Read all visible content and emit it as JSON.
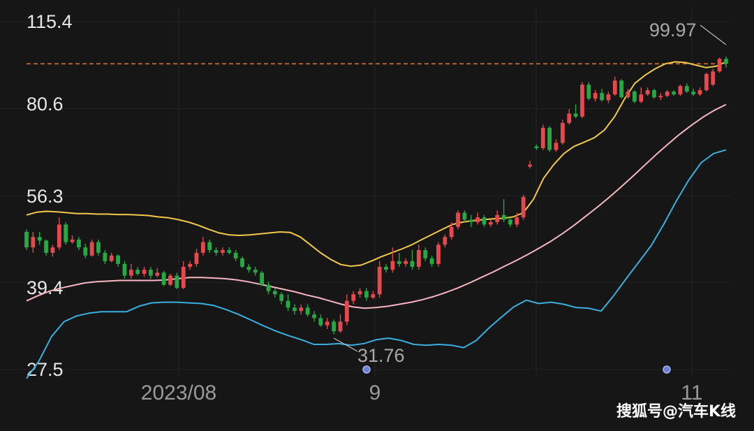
{
  "chart_data": {
    "type": "candlestick",
    "y_scale": "log",
    "y_ticks": [
      "115.4",
      "80.6",
      "56.3",
      "39.4",
      "27.5"
    ],
    "x_ticks": [
      "2023/08",
      "9",
      "11"
    ],
    "annotations": {
      "high": "99.97",
      "low": "31.76"
    },
    "reference_line": 97,
    "colors": {
      "up": "#e5484d",
      "down": "#27a844",
      "mid": "#f2c94c",
      "upper": "#f7b6c2",
      "lower": "#3ab0e0",
      "ref": "#d4703a",
      "marker": "#6f7fd8"
    },
    "candles": [
      [
        48.5,
        45.5,
        49.0,
        45.0
      ],
      [
        45.5,
        47.5,
        48.5,
        44.5
      ],
      [
        47.5,
        46.8,
        48.5,
        46.0
      ],
      [
        46.8,
        44.5,
        47.0,
        44.0
      ],
      [
        44.5,
        45.5,
        46.0,
        43.8
      ],
      [
        45.5,
        50.0,
        51.5,
        45.0
      ],
      [
        50.0,
        46.5,
        50.5,
        46.0
      ],
      [
        46.5,
        47.0,
        47.8,
        46.2
      ],
      [
        47.0,
        45.5,
        47.5,
        45.0
      ],
      [
        45.5,
        44.0,
        46.2,
        43.5
      ],
      [
        44.0,
        46.5,
        47.0,
        43.8
      ],
      [
        46.5,
        44.5,
        47.0,
        44.0
      ],
      [
        44.5,
        43.0,
        45.0,
        42.5
      ],
      [
        43.0,
        44.0,
        44.5,
        42.8
      ],
      [
        44.0,
        42.5,
        44.2,
        42.0
      ],
      [
        42.5,
        40.5,
        43.0,
        40.0
      ],
      [
        40.5,
        41.5,
        42.5,
        40.0
      ],
      [
        41.5,
        40.8,
        42.0,
        40.5
      ],
      [
        40.8,
        41.5,
        42.0,
        40.3
      ],
      [
        41.5,
        40.5,
        42.0,
        40.0
      ],
      [
        40.5,
        41.0,
        41.8,
        40.2
      ],
      [
        41.0,
        39.0,
        41.3,
        38.8
      ],
      [
        39.0,
        40.5,
        40.8,
        38.8
      ],
      [
        40.5,
        38.5,
        41.0,
        38.3
      ],
      [
        38.5,
        42.0,
        43.0,
        38.3
      ],
      [
        42.0,
        42.5,
        43.0,
        41.5
      ],
      [
        42.5,
        44.5,
        45.2,
        42.0
      ],
      [
        44.5,
        46.5,
        47.5,
        44.0
      ],
      [
        46.5,
        45.0,
        47.0,
        44.5
      ],
      [
        45.0,
        44.5,
        45.5,
        44.0
      ],
      [
        44.5,
        45.0,
        45.5,
        44.0
      ],
      [
        45.0,
        44.5,
        45.5,
        44.2
      ],
      [
        44.5,
        43.5,
        45.0,
        43.0
      ],
      [
        43.5,
        42.0,
        43.8,
        41.8
      ],
      [
        42.0,
        41.5,
        42.5,
        41.0
      ],
      [
        41.5,
        41.0,
        42.0,
        40.5
      ],
      [
        41.0,
        39.0,
        41.3,
        38.8
      ],
      [
        39.0,
        38.0,
        39.5,
        37.5
      ],
      [
        38.0,
        37.5,
        38.5,
        37.0
      ],
      [
        37.5,
        36.5,
        37.8,
        36.0
      ],
      [
        36.5,
        35.5,
        37.5,
        35.0
      ],
      [
        35.5,
        35.0,
        36.0,
        34.5
      ],
      [
        35.0,
        35.5,
        36.0,
        34.5
      ],
      [
        35.5,
        34.5,
        36.0,
        34.2
      ],
      [
        34.5,
        34.0,
        35.0,
        33.5
      ],
      [
        34.0,
        33.0,
        34.5,
        32.8
      ],
      [
        33.0,
        33.5,
        34.0,
        32.5
      ],
      [
        33.5,
        32.2,
        33.8,
        31.8
      ],
      [
        32.2,
        33.5,
        34.5,
        32.0
      ],
      [
        33.5,
        36.5,
        37.5,
        33.0
      ],
      [
        36.5,
        37.5,
        38.0,
        36.0
      ],
      [
        37.5,
        38.0,
        38.5,
        37.0
      ],
      [
        38.0,
        37.0,
        38.5,
        36.5
      ],
      [
        37.0,
        37.5,
        38.0,
        36.8
      ],
      [
        37.5,
        42.0,
        43.0,
        37.0
      ],
      [
        42.0,
        41.5,
        42.5,
        41.0
      ],
      [
        41.5,
        43.0,
        45.5,
        41.0
      ],
      [
        43.0,
        42.5,
        44.5,
        42.0
      ],
      [
        42.5,
        43.0,
        43.5,
        42.0
      ],
      [
        43.0,
        42.0,
        45.0,
        41.5
      ],
      [
        42.0,
        45.0,
        46.0,
        41.5
      ],
      [
        45.0,
        43.5,
        45.5,
        43.0
      ],
      [
        43.5,
        42.5,
        44.0,
        42.0
      ],
      [
        42.5,
        46.0,
        46.5,
        42.0
      ],
      [
        46.0,
        47.5,
        48.0,
        45.5
      ],
      [
        47.5,
        49.5,
        50.5,
        47.0
      ],
      [
        49.5,
        52.5,
        53.0,
        49.0
      ],
      [
        52.5,
        51.0,
        53.0,
        50.5
      ],
      [
        51.0,
        50.5,
        52.0,
        49.5
      ],
      [
        50.5,
        51.5,
        52.5,
        50.0
      ],
      [
        51.5,
        50.0,
        52.0,
        49.5
      ],
      [
        50.0,
        50.5,
        51.0,
        49.5
      ],
      [
        50.5,
        52.0,
        53.0,
        50.0
      ],
      [
        52.0,
        51.0,
        55.5,
        50.5
      ],
      [
        51.0,
        50.0,
        51.5,
        49.5
      ],
      [
        50.0,
        51.5,
        52.5,
        49.5
      ],
      [
        51.5,
        56.0,
        56.5,
        51.0
      ],
      [
        63.5,
        64.0,
        65.0,
        63.0
      ],
      [
        69.0,
        68.5,
        69.5,
        68.0
      ],
      [
        68.5,
        74.5,
        75.5,
        68.0
      ],
      [
        74.5,
        68.0,
        75.0,
        67.5
      ],
      [
        68.0,
        70.0,
        71.0,
        67.5
      ],
      [
        70.0,
        76.0,
        77.0,
        69.5
      ],
      [
        76.0,
        79.0,
        80.5,
        75.5
      ],
      [
        79.0,
        78.0,
        82.0,
        77.5
      ],
      [
        78.0,
        89.0,
        90.0,
        77.5
      ],
      [
        89.0,
        84.0,
        90.0,
        83.5
      ],
      [
        84.0,
        86.0,
        87.0,
        83.0
      ],
      [
        86.0,
        83.5,
        87.5,
        83.0
      ],
      [
        83.5,
        85.5,
        86.5,
        82.5
      ],
      [
        85.5,
        90.5,
        92.0,
        85.0
      ],
      [
        90.5,
        84.5,
        91.0,
        84.0
      ],
      [
        84.5,
        86.5,
        87.5,
        84.0
      ],
      [
        86.5,
        83.0,
        87.0,
        82.5
      ],
      [
        83.0,
        85.5,
        88.0,
        82.5
      ],
      [
        85.5,
        87.0,
        88.0,
        85.0
      ],
      [
        87.0,
        84.5,
        87.5,
        84.0
      ],
      [
        84.5,
        85.0,
        86.0,
        83.5
      ],
      [
        85.0,
        86.5,
        87.0,
        84.5
      ],
      [
        86.5,
        85.5,
        87.0,
        85.0
      ],
      [
        85.5,
        88.5,
        89.0,
        85.0
      ],
      [
        88.5,
        86.5,
        89.5,
        86.0
      ],
      [
        86.5,
        85.5,
        87.5,
        85.0
      ],
      [
        85.5,
        87.0,
        88.0,
        85.0
      ],
      [
        87.0,
        93.0,
        93.5,
        86.5
      ],
      [
        89.0,
        94.0,
        95.0,
        88.5
      ],
      [
        94.0,
        99.0,
        99.5,
        93.5
      ],
      [
        99.0,
        97.0,
        99.97,
        95.5
      ]
    ],
    "mid_band": [
      52.0,
      52.6,
      52.8,
      52.7,
      52.5,
      52.3,
      52.3,
      52.2,
      52.2,
      52.1,
      52.1,
      52.0,
      51.9,
      51.6,
      51.4,
      51.0,
      50.5,
      49.8,
      49.0,
      48.3,
      47.9,
      47.8,
      47.9,
      48.1,
      48.3,
      48.5,
      48.4,
      47.5,
      46.0,
      44.5,
      43.3,
      42.4,
      42.1,
      42.3,
      43.0,
      43.8,
      44.5,
      45.2,
      46.0,
      47.0,
      48.0,
      49.0,
      50.0,
      50.5,
      50.8,
      51.0,
      51.2,
      51.3,
      51.6,
      52.5,
      55.5,
      60.5,
      64.0,
      67.0,
      69.0,
      70.2,
      71.5,
      73.8,
      78.0,
      84.0,
      89.5,
      92.5,
      95.0,
      97.0,
      97.8,
      97.5,
      96.5,
      95.5,
      96.0,
      97.8
    ],
    "upper_band": [
      36.5,
      37.3,
      38.0,
      38.5,
      38.9,
      39.3,
      39.5,
      39.6,
      39.7,
      39.7,
      39.7,
      39.7,
      39.8,
      40.0,
      40.2,
      40.2,
      40.1,
      40.0,
      39.8,
      39.5,
      39.1,
      38.7,
      38.3,
      37.9,
      37.4,
      37.0,
      36.5,
      36.0,
      35.6,
      35.4,
      35.5,
      35.7,
      36.0,
      36.3,
      36.7,
      37.2,
      37.8,
      38.5,
      39.3,
      40.2,
      41.1,
      42.1,
      43.1,
      44.2,
      45.4,
      46.7,
      48.2,
      49.9,
      51.8,
      53.8,
      56.0,
      58.4,
      61.0,
      63.8,
      66.7,
      69.6,
      72.5,
      75.2,
      77.8,
      80.1,
      82.0
    ],
    "lower_band": [
      26.5,
      28.5,
      31.5,
      33.5,
      34.3,
      34.7,
      34.9,
      34.9,
      34.9,
      35.7,
      36.2,
      36.3,
      36.3,
      36.2,
      36.1,
      35.8,
      35.2,
      34.5,
      33.7,
      32.9,
      32.2,
      31.6,
      31.1,
      30.5,
      30.5,
      30.6,
      30.4,
      30.6,
      31.1,
      31.3,
      31.0,
      30.5,
      30.4,
      30.5,
      30.4,
      30.1,
      31.0,
      32.6,
      34.1,
      35.6,
      36.6,
      36.1,
      36.3,
      36.0,
      35.5,
      35.4,
      35.0,
      37.3,
      40.0,
      42.8,
      45.8,
      50.0,
      55.0,
      60.0,
      64.5,
      67.0,
      68.0
    ]
  }
}
